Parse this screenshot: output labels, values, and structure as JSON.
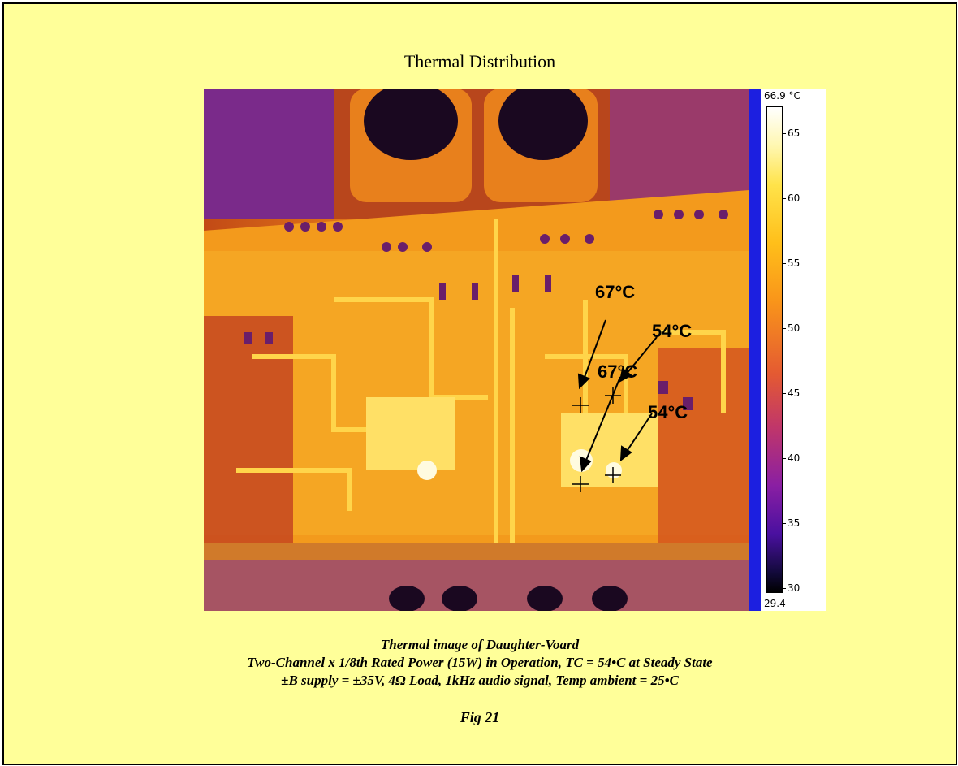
{
  "title": "Thermal Distribution",
  "thermal_image": {
    "scale_max": "66.9 °C",
    "scale_min": "29.4",
    "ticks": [
      "65",
      "60",
      "55",
      "50",
      "45",
      "40",
      "35",
      "30"
    ],
    "annotations": [
      "67°C",
      "54°C",
      "67°C",
      "54°C"
    ]
  },
  "caption": {
    "line1": "Thermal image of Daughter-Voard",
    "line2": "Two-Channel  x 1/8th Rated Power (15W) in Operation, TC = 54•C at Steady State",
    "line3": "±B supply = ±35V, 4Ω Load, 1kHz audio signal,  Temp ambient = 25•C"
  },
  "figure_label": "Fig 21",
  "colors": {
    "page_bg": "#ffff99",
    "blue_band": "#1c1fe0"
  }
}
